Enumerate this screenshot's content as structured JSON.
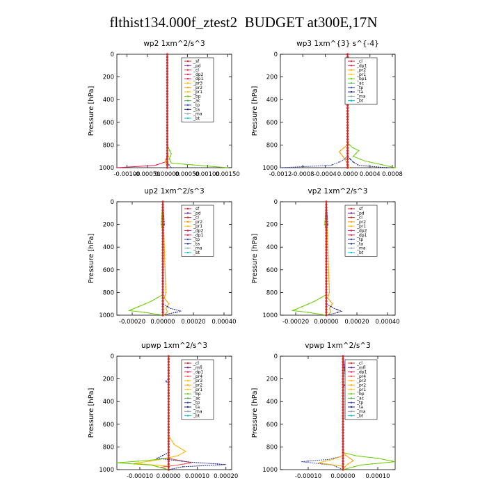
{
  "title": "flthist134.000f_ztest2  BUDGET at300E,17N",
  "colors": {
    "sf": "#e41a1c",
    "pd": "#7b1fa2",
    "cl": "#d62728",
    "dp2": "#e6194b",
    "dp1": "#e6194b",
    "pr3": "#ffb300",
    "pr2": "#ffa000",
    "pr1": "#ffc107",
    "pr4": "#ef5350",
    "bp": "#66cc00",
    "bp1": "#66cc00",
    "ac": "#4caf50",
    "tp": "#3f51b5",
    "ta": "#1a237e",
    "ma": "#90a4ae",
    "bt": "#00bcd4",
    "mfl": "#6a1b9a"
  },
  "chart_data": [
    {
      "type": "line",
      "title": "wp2   1xm^2/s^3",
      "ylabel": "Pressure  [hPa]",
      "xlim": [
        -0.00125,
        0.0016
      ],
      "ylim": [
        1000,
        0
      ],
      "xticks": [
        -0.001,
        -0.0005,
        0,
        0.0005,
        0.001,
        0.0015
      ],
      "xticklabels": [
        "-0.00100",
        "-0.00050",
        "0.00000",
        "0.00050",
        "0.00100",
        "0.00150"
      ],
      "yticks": [
        0,
        200,
        400,
        600,
        800,
        1000
      ],
      "yticklabels": [
        "0",
        "200",
        "400",
        "600",
        "800",
        "1000"
      ],
      "legend_position": "top-right",
      "legend": [
        "_sf",
        "_pd",
        "_cl",
        "_dp2",
        "_dp1",
        "_pr3",
        "_pr2",
        "_pr1",
        "_bp",
        "_ac",
        "_tp",
        "_ta",
        "_ma",
        "_bt"
      ],
      "series": [
        {
          "key": "pd",
          "x": [
            0,
            0,
            0,
            0,
            0
          ],
          "y": [
            0,
            300,
            600,
            900,
            1000
          ]
        },
        {
          "key": "bp",
          "x": [
            0,
            0,
            5e-05,
            0.0001,
            5e-05,
            0.0001,
            0.0015
          ],
          "y": [
            0,
            800,
            840,
            880,
            920,
            960,
            1000
          ]
        },
        {
          "key": "dp2",
          "x": [
            0,
            0,
            -5e-05,
            -0.0003,
            -0.00125
          ],
          "y": [
            0,
            900,
            950,
            980,
            1000
          ]
        },
        {
          "key": "pr2",
          "x": [
            0,
            0,
            3e-05,
            -5e-05,
            2e-05
          ],
          "y": [
            0,
            850,
            900,
            950,
            1000
          ]
        },
        {
          "key": "tp",
          "x": [
            0,
            0,
            5e-05,
            0.0001
          ],
          "y": [
            0,
            950,
            980,
            1000
          ]
        },
        {
          "key": "cl",
          "x": [
            0,
            0,
            0,
            0,
            0
          ],
          "y": [
            0,
            300,
            600,
            900,
            1000
          ]
        }
      ]
    },
    {
      "type": "line",
      "title": "wp3   1xm^{3} s^{-4}",
      "ylabel": "Pressure  [hPa]",
      "xlim": [
        -0.0012,
        0.00085
      ],
      "ylim": [
        1000,
        0
      ],
      "xticks": [
        -0.0012,
        -0.0008,
        -0.0004,
        0,
        0.0004,
        0.0008
      ],
      "xticklabels": [
        "-0.0012",
        "-0.0008",
        "-0.0004",
        "0.0000",
        "0.0004",
        "0.0008"
      ],
      "yticks": [
        0,
        200,
        400,
        600,
        800,
        1000
      ],
      "yticklabels": [
        "0",
        "200",
        "400",
        "600",
        "800",
        "1000"
      ],
      "legend_position": "top-right",
      "legend": [
        "_cl",
        "_dp1",
        "_pr2",
        "_pr1",
        "_bp1",
        "_ac",
        "_tp",
        "_ta",
        "_ma",
        "_bt"
      ],
      "series": [
        {
          "key": "bp1",
          "x": [
            0,
            0,
            8e-05,
            0.0002,
            0.0001,
            0.0003,
            0.00085
          ],
          "y": [
            0,
            780,
            820,
            850,
            900,
            940,
            1000
          ]
        },
        {
          "key": "pr2",
          "x": [
            0,
            0,
            -8e-05,
            -0.00015,
            -5e-05,
            3e-05
          ],
          "y": [
            0,
            800,
            830,
            860,
            920,
            1000
          ]
        },
        {
          "key": "tp",
          "x": [
            0,
            -3e-05,
            0,
            0,
            -0.0001,
            -0.0003,
            -0.0012
          ],
          "y": [
            0,
            140,
            160,
            900,
            940,
            980,
            1000
          ]
        },
        {
          "key": "ta",
          "x": [
            0,
            0,
            0.0001,
            0.0002,
            0.0007
          ],
          "y": [
            0,
            900,
            950,
            980,
            1000
          ]
        },
        {
          "key": "cl",
          "x": [
            0,
            0,
            0,
            0
          ],
          "y": [
            0,
            400,
            800,
            1000
          ]
        }
      ]
    },
    {
      "type": "line",
      "title": "up2   1xm^2/s^3",
      "ylabel": "Pressure  [hPa]",
      "xlim": [
        -0.0003,
        0.00045
      ],
      "ylim": [
        1000,
        0
      ],
      "xticks": [
        -0.0002,
        0,
        0.0002,
        0.0004
      ],
      "xticklabels": [
        "-0.00020",
        "0.00000",
        "0.00020",
        "0.00040"
      ],
      "yticks": [
        0,
        200,
        400,
        600,
        800,
        1000
      ],
      "yticklabels": [
        "0",
        "200",
        "400",
        "600",
        "800",
        "1000"
      ],
      "legend_position": "top-right",
      "legend": [
        "_sf",
        "_pd",
        "_cl",
        "_pr2",
        "_pr1",
        "_dp2",
        "_dp1",
        "_tp",
        "_ta",
        "_ma",
        "_bt"
      ],
      "series": [
        {
          "key": "bp",
          "x": [
            0,
            -1e-05,
            0,
            0,
            -8e-05,
            -0.00015,
            -0.00022,
            -0.00012,
            -5e-05,
            0
          ],
          "y": [
            0,
            200,
            260,
            820,
            880,
            920,
            960,
            975,
            990,
            1000
          ]
        },
        {
          "key": "pr2",
          "x": [
            0,
            2e-05,
            1e-05,
            4e-05,
            2e-05,
            3e-05,
            1e-05
          ],
          "y": [
            0,
            800,
            850,
            900,
            940,
            970,
            1000
          ]
        },
        {
          "key": "ta",
          "x": [
            0,
            0,
            5e-05,
            0.00012,
            5e-05,
            0
          ],
          "y": [
            0,
            900,
            940,
            965,
            985,
            1000
          ]
        },
        {
          "key": "tp",
          "x": [
            0,
            1e-05,
            0,
            0
          ],
          "y": [
            0,
            200,
            260,
            1000
          ]
        },
        {
          "key": "cl",
          "x": [
            0,
            0,
            0,
            0
          ],
          "y": [
            0,
            400,
            800,
            1000
          ]
        }
      ]
    },
    {
      "type": "line",
      "title": "vp2   1xm^2/s^3",
      "ylabel": "Pressure  [hPa]",
      "xlim": [
        -0.0003,
        0.00045
      ],
      "ylim": [
        1000,
        0
      ],
      "xticks": [
        -0.0002,
        0,
        0.0002,
        0.0004
      ],
      "xticklabels": [
        "-0.00020",
        "0.00000",
        "0.00020",
        "0.00040"
      ],
      "yticks": [
        0,
        200,
        400,
        600,
        800,
        1000
      ],
      "yticklabels": [
        "0",
        "200",
        "400",
        "600",
        "800",
        "1000"
      ],
      "legend_position": "top-right",
      "legend": [
        "_sf",
        "_pd",
        "_cl",
        "_pr2",
        "_pr1",
        "_dp2",
        "_dp1",
        "_tp",
        "_ta",
        "_ma",
        "_bt"
      ],
      "series": [
        {
          "key": "bp",
          "x": [
            0,
            -1e-05,
            0,
            0,
            -8e-05,
            -0.00015,
            -0.00022,
            -0.00012,
            -5e-05,
            0
          ],
          "y": [
            0,
            200,
            260,
            820,
            880,
            920,
            960,
            975,
            990,
            1000
          ]
        },
        {
          "key": "pr2",
          "x": [
            0,
            2e-05,
            1e-05,
            4e-05,
            2e-05,
            3e-05,
            1e-05
          ],
          "y": [
            0,
            800,
            850,
            900,
            940,
            970,
            1000
          ]
        },
        {
          "key": "ta",
          "x": [
            0,
            0,
            5e-05,
            0.0001,
            5e-05,
            0
          ],
          "y": [
            0,
            900,
            940,
            965,
            985,
            1000
          ]
        },
        {
          "key": "tp",
          "x": [
            0,
            1e-05,
            0,
            0
          ],
          "y": [
            0,
            200,
            260,
            1000
          ]
        },
        {
          "key": "cl",
          "x": [
            0,
            0,
            0,
            0
          ],
          "y": [
            0,
            400,
            800,
            1000
          ]
        }
      ]
    },
    {
      "type": "line",
      "title": "upwp   1xm^2/s^3",
      "ylabel": "Pressure  [hPa]",
      "xlim": [
        -0.00018,
        0.00022
      ],
      "ylim": [
        1000,
        0
      ],
      "xticks": [
        -0.0001,
        0,
        0.0001,
        0.0002
      ],
      "xticklabels": [
        "-0.00010",
        "0.00000",
        "0.00010",
        "0.00020"
      ],
      "yticks": [
        0,
        200,
        400,
        600,
        800,
        1000
      ],
      "yticklabels": [
        "0",
        "200",
        "400",
        "600",
        "800",
        "1000"
      ],
      "legend_position": "top-right",
      "legend": [
        "_cl",
        "_mfl",
        "_dp1",
        "_pr4",
        "_pr3",
        "_pr2",
        "_pr1",
        "_bp",
        "_ac",
        "_tp",
        "_ta",
        "_ma",
        "_bt"
      ],
      "series": [
        {
          "key": "pr3",
          "x": [
            0,
            0,
            2e-05,
            6e-05,
            3e-05,
            -5e-05,
            -0.00012,
            0,
            0
          ],
          "y": [
            0,
            700,
            780,
            840,
            880,
            920,
            945,
            970,
            1000
          ]
        },
        {
          "key": "pr4",
          "x": [
            0,
            0,
            4e-05,
            8e-05,
            3e-05,
            -3e-05,
            0
          ],
          "y": [
            0,
            900,
            920,
            940,
            960,
            980,
            1000
          ]
        },
        {
          "key": "bp",
          "x": [
            0,
            0,
            -8e-05,
            -0.00018,
            -6e-05,
            0
          ],
          "y": [
            0,
            900,
            920,
            940,
            960,
            1000
          ]
        },
        {
          "key": "ta",
          "x": [
            0,
            0,
            -4e-05,
            8e-05,
            0.0002,
            5e-05,
            0
          ],
          "y": [
            0,
            850,
            900,
            935,
            955,
            975,
            1000
          ]
        },
        {
          "key": "tp",
          "x": [
            0,
            0,
            -1e-05,
            0,
            0
          ],
          "y": [
            0,
            200,
            220,
            240,
            1000
          ]
        },
        {
          "key": "cl",
          "x": [
            0,
            0,
            0,
            0
          ],
          "y": [
            0,
            400,
            800,
            1000
          ]
        }
      ]
    },
    {
      "type": "line",
      "title": "vpwp   1xm^2/s^3",
      "ylabel": "Pressure  [hPa]",
      "xlim": [
        -0.00018,
        0.00015
      ],
      "ylim": [
        1000,
        0
      ],
      "xticks": [
        -0.0001,
        0,
        0.0001
      ],
      "xticklabels": [
        "-0.00010",
        "0.00000",
        "0.00010"
      ],
      "yticks": [
        0,
        200,
        400,
        600,
        800,
        1000
      ],
      "yticklabels": [
        "0",
        "200",
        "400",
        "600",
        "800",
        "1000"
      ],
      "legend_position": "top-right",
      "legend": [
        "_cl",
        "_mfl",
        "_dp1",
        "_pr4",
        "_pr3",
        "_pr2",
        "_pr1",
        "_bp",
        "_ac",
        "_tp",
        "_ta",
        "_ma",
        "_bt"
      ],
      "series": [
        {
          "key": "tp",
          "x": [
            0,
            0,
            -4e-05,
            -0.00012,
            -3e-05,
            0
          ],
          "y": [
            0,
            880,
            910,
            930,
            960,
            1000
          ]
        },
        {
          "key": "bp",
          "x": [
            0,
            0,
            4e-05,
            0.0001,
            0.00015,
            5e-05,
            0
          ],
          "y": [
            0,
            850,
            880,
            900,
            930,
            960,
            1000
          ]
        },
        {
          "key": "pr3",
          "x": [
            0,
            0,
            -3e-05,
            -7e-05,
            0,
            0
          ],
          "y": [
            0,
            880,
            910,
            940,
            970,
            1000
          ]
        },
        {
          "key": "pr2",
          "x": [
            0,
            0,
            1e-05,
            3e-05,
            1e-05,
            0
          ],
          "y": [
            0,
            850,
            880,
            920,
            960,
            1000
          ]
        },
        {
          "key": "pd",
          "x": [
            0,
            1e-05,
            0,
            0
          ],
          "y": [
            0,
            240,
            270,
            1000
          ]
        },
        {
          "key": "cl",
          "x": [
            0,
            0,
            0,
            0
          ],
          "y": [
            0,
            400,
            800,
            1000
          ]
        }
      ]
    }
  ]
}
